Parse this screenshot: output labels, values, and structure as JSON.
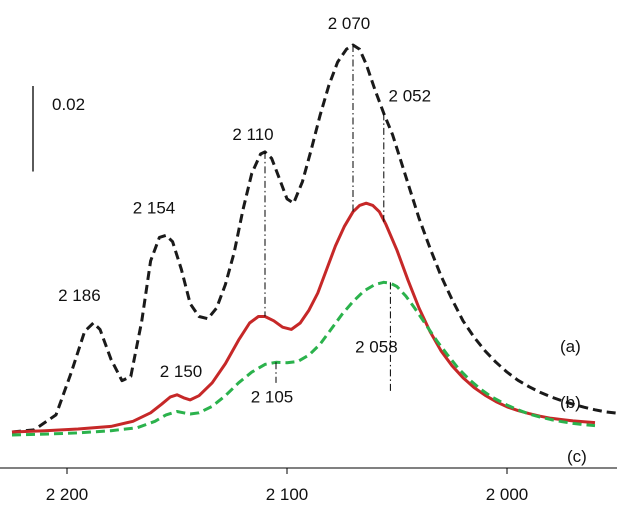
{
  "chart_data": {
    "type": "line",
    "title": "",
    "xlabel": "",
    "ylabel": "",
    "x_reversed": true,
    "xlim": [
      2225,
      1950
    ],
    "ylim": [
      -0.005,
      0.1
    ],
    "x_ticks": [
      2200,
      2100,
      2000
    ],
    "x_tick_labels": [
      "2 200",
      "2 100",
      "2 000"
    ],
    "scale_bar": {
      "value": 0.02,
      "label": "0.02"
    },
    "grid": false,
    "series": [
      {
        "name": "(a)",
        "color": "#1a1a1a",
        "dash": "dashed",
        "x": [
          2225,
          2215,
          2205,
          2198,
          2192,
          2188,
          2185,
          2180,
          2175,
          2171,
          2166,
          2162,
          2158,
          2155,
          2152,
          2148,
          2144,
          2140,
          2136,
          2132,
          2128,
          2124,
          2120,
          2116,
          2112,
          2110,
          2107,
          2104,
          2100,
          2097,
          2093,
          2089,
          2085,
          2081,
          2077,
          2073,
          2070,
          2067,
          2064,
          2060,
          2056,
          2052,
          2048,
          2044,
          2040,
          2035,
          2030,
          2025,
          2020,
          2015,
          2010,
          2005,
          2000,
          1995,
          1990,
          1985,
          1980,
          1975,
          1970,
          1965,
          1960,
          1955,
          1950
        ],
        "y": [
          0.0,
          0.0005,
          0.004,
          0.014,
          0.0235,
          0.0255,
          0.024,
          0.017,
          0.012,
          0.013,
          0.026,
          0.04,
          0.0455,
          0.046,
          0.0445,
          0.038,
          0.03,
          0.027,
          0.0265,
          0.029,
          0.0345,
          0.042,
          0.052,
          0.0605,
          0.065,
          0.0655,
          0.064,
          0.06,
          0.0545,
          0.0535,
          0.0585,
          0.066,
          0.074,
          0.081,
          0.0865,
          0.0895,
          0.0905,
          0.0895,
          0.086,
          0.08,
          0.0745,
          0.0695,
          0.063,
          0.0565,
          0.05,
          0.043,
          0.0365,
          0.031,
          0.026,
          0.0222,
          0.019,
          0.0163,
          0.014,
          0.0121,
          0.0106,
          0.0093,
          0.0082,
          0.0073,
          0.0065,
          0.0058,
          0.0052,
          0.0047,
          0.0044
        ]
      },
      {
        "name": "(b)",
        "color": "#c62828",
        "dash": "solid",
        "x": [
          2225,
          2210,
          2195,
          2180,
          2170,
          2162,
          2157,
          2153,
          2150,
          2147,
          2144,
          2140,
          2134,
          2128,
          2122,
          2117,
          2113,
          2110,
          2106,
          2102,
          2098,
          2094,
          2090,
          2086,
          2082,
          2078,
          2074,
          2070,
          2067,
          2064,
          2061,
          2058,
          2055,
          2050,
          2045,
          2040,
          2035,
          2030,
          2025,
          2020,
          2015,
          2010,
          2005,
          2000,
          1995,
          1990,
          1985,
          1980,
          1975,
          1970,
          1965,
          1960
        ],
        "y": [
          0.0,
          0.0003,
          0.0007,
          0.0013,
          0.0025,
          0.0045,
          0.0065,
          0.0082,
          0.0087,
          0.008,
          0.0075,
          0.0085,
          0.0115,
          0.016,
          0.0215,
          0.0255,
          0.027,
          0.027,
          0.026,
          0.0245,
          0.024,
          0.0255,
          0.0285,
          0.0325,
          0.038,
          0.0435,
          0.048,
          0.0515,
          0.053,
          0.0535,
          0.053,
          0.0515,
          0.0485,
          0.0425,
          0.0355,
          0.029,
          0.0235,
          0.019,
          0.0155,
          0.0127,
          0.0104,
          0.0086,
          0.0071,
          0.0059,
          0.005,
          0.0043,
          0.0037,
          0.0032,
          0.0029,
          0.0026,
          0.0024,
          0.0022
        ]
      },
      {
        "name": "(c)",
        "color": "#2bb24c",
        "dash": "dashed",
        "x": [
          2225,
          2210,
          2195,
          2180,
          2168,
          2160,
          2155,
          2150,
          2147,
          2144,
          2140,
          2134,
          2128,
          2122,
          2116,
          2110,
          2105,
          2100,
          2095,
          2090,
          2085,
          2080,
          2075,
          2070,
          2065,
          2060,
          2056,
          2053,
          2050,
          2046,
          2042,
          2037,
          2032,
          2027,
          2022,
          2017,
          2012,
          2007,
          2000,
          1995,
          1990,
          1985,
          1980,
          1975,
          1970,
          1965,
          1960
        ],
        "y": [
          -0.0007,
          -0.0005,
          -0.0002,
          0.0003,
          0.001,
          0.0025,
          0.004,
          0.0048,
          0.0045,
          0.0042,
          0.0045,
          0.006,
          0.0085,
          0.0115,
          0.014,
          0.0158,
          0.0163,
          0.0162,
          0.0165,
          0.018,
          0.0205,
          0.024,
          0.0275,
          0.0305,
          0.033,
          0.0345,
          0.035,
          0.0348,
          0.034,
          0.0318,
          0.029,
          0.0252,
          0.0214,
          0.018,
          0.0148,
          0.0122,
          0.01,
          0.0082,
          0.0063,
          0.0052,
          0.0042,
          0.0035,
          0.0029,
          0.0024,
          0.002,
          0.0017,
          0.0015
        ]
      }
    ],
    "annotations": [
      {
        "text": "2 186",
        "x": 2188,
        "y": 0.0255,
        "guide": false
      },
      {
        "text": "2 154",
        "x": 2155,
        "y": 0.046,
        "guide": false
      },
      {
        "text": "2 110",
        "x": 2110,
        "y": 0.0655,
        "guide_from": 0.0655,
        "guide_to": 0.027
      },
      {
        "text": "2 070",
        "x": 2070,
        "y": 0.0905,
        "guide_from": 0.0905,
        "guide_to": 0.0515
      },
      {
        "text": "2 052",
        "x": 2056,
        "y": 0.0745,
        "guide_from": 0.0745,
        "guide_to": 0.0485
      },
      {
        "text": "2 150",
        "x": 2150,
        "y": 0.0087,
        "guide": false
      },
      {
        "text": "2 105",
        "x": 2105,
        "y": 0.0163,
        "guide_from": 0.0163,
        "guide_to": 0.0115
      },
      {
        "text": "2 058",
        "x": 2053,
        "y": 0.035,
        "guide_from": 0.035,
        "guide_to": 0.0095
      }
    ]
  }
}
